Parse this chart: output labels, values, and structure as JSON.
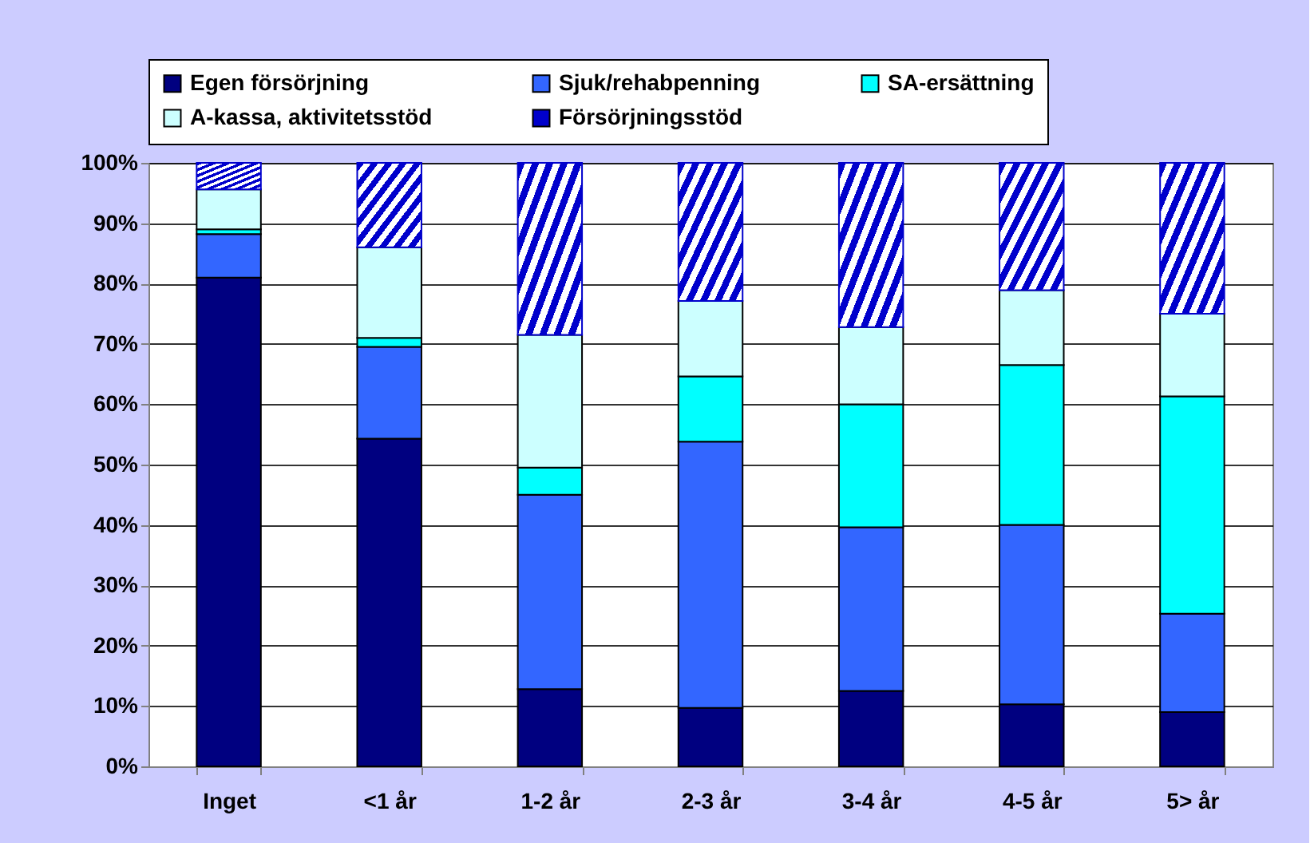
{
  "chart_data": {
    "type": "bar",
    "stacked": true,
    "categories": [
      "Inget",
      "<1 år",
      "1-2 år",
      "2-3 år",
      "3-4 år",
      "4-5 år",
      "5> år"
    ],
    "series": [
      {
        "name": "Egen försörjning",
        "color": "#000080",
        "values": [
          81,
          54.3,
          12.8,
          9.7,
          12.5,
          10.3,
          9
        ]
      },
      {
        "name": "Sjuk/rehabpenning",
        "color": "#3366ff",
        "values": [
          7.2,
          15.2,
          32.2,
          44.1,
          27.1,
          29.7,
          16.3
        ]
      },
      {
        "name": "SA-ersättning",
        "color": "#00ffff",
        "values": [
          0.8,
          1.5,
          4.5,
          10.8,
          20.4,
          26.5,
          36
        ]
      },
      {
        "name": "A-kassa, aktivitetsstöd",
        "color": "#ccffff",
        "values": [
          6.6,
          15,
          22,
          12.5,
          12.8,
          12.4,
          13.7
        ]
      },
      {
        "name": "Försörjningsstöd",
        "color": "#0000cc",
        "values": [
          4.4,
          14,
          28.5,
          22.9,
          27.2,
          21.1,
          25
        ]
      }
    ],
    "ylim": [
      0,
      100
    ],
    "yticks": [
      {
        "value": 0,
        "label": "0%"
      },
      {
        "value": 10,
        "label": "10%"
      },
      {
        "value": 20,
        "label": "20%"
      },
      {
        "value": 30,
        "label": "30%"
      },
      {
        "value": 40,
        "label": "40%"
      },
      {
        "value": 50,
        "label": "50%"
      },
      {
        "value": 60,
        "label": "60%"
      },
      {
        "value": 70,
        "label": "70%"
      },
      {
        "value": 80,
        "label": "80%"
      },
      {
        "value": 90,
        "label": "90%"
      },
      {
        "value": 100,
        "label": "100%"
      }
    ],
    "grid": "y",
    "legend": "top"
  }
}
